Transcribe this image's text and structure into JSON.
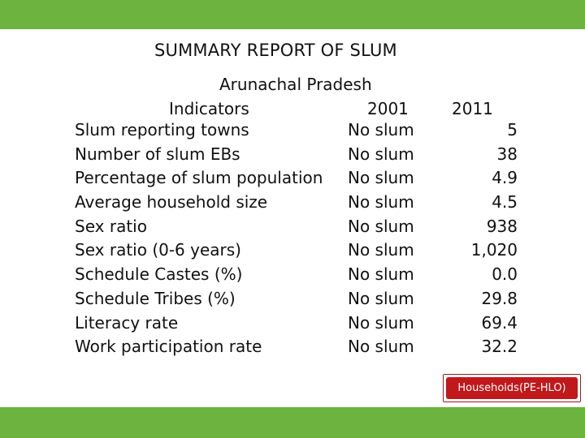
{
  "colors": {
    "bar": "#6db33f",
    "badge": "#c0181b"
  },
  "title": "SUMMARY REPORT OF SLUM",
  "state": "Arunachal Pradesh",
  "headers": {
    "indicators": "Indicators",
    "y2001": "2001",
    "y2011": "2011"
  },
  "rows": [
    {
      "indicator": "Slum reporting towns",
      "v2001": "No slum",
      "v2011": "5"
    },
    {
      "indicator": "Number of slum EBs",
      "v2001": "No slum",
      "v2011": "38"
    },
    {
      "indicator": "Percentage of slum population",
      "v2001": "No slum",
      "v2011": "4.9"
    },
    {
      "indicator": "Average household size",
      "v2001": "No slum",
      "v2011": "4.5"
    },
    {
      "indicator": "Sex ratio",
      "v2001": "No slum",
      "v2011": "938"
    },
    {
      "indicator": "Sex ratio (0-6 years)",
      "v2001": "No slum",
      "v2011": "1,020"
    },
    {
      "indicator": "Schedule Castes (%)",
      "v2001": "No slum",
      "v2011": "0.0"
    },
    {
      "indicator": "Schedule Tribes (%)",
      "v2001": "No slum",
      "v2011": "29.8"
    },
    {
      "indicator": "Literacy rate",
      "v2001": "No slum",
      "v2011": "69.4"
    },
    {
      "indicator": "Work participation rate",
      "v2001": "No slum",
      "v2011": "32.2"
    }
  ],
  "badge": {
    "label": "Households(PE-HLO)"
  }
}
